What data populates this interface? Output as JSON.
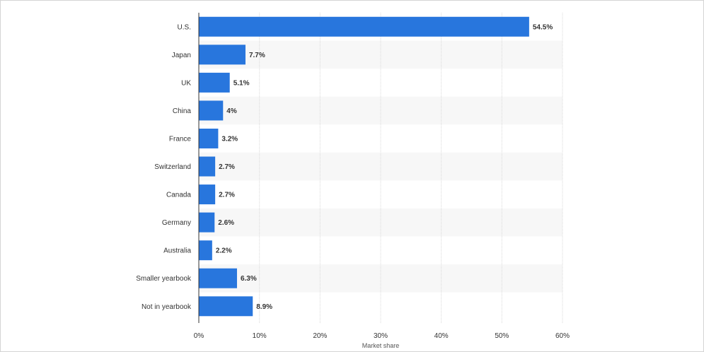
{
  "chart_data": {
    "type": "bar",
    "orientation": "horizontal",
    "categories": [
      "U.S.",
      "Japan",
      "UK",
      "China",
      "France",
      "Switzerland",
      "Canada",
      "Germany",
      "Australia",
      "Smaller yearbook",
      "Not in yearbook"
    ],
    "values": [
      54.5,
      7.7,
      5.1,
      4,
      3.2,
      2.7,
      2.7,
      2.6,
      2.2,
      6.3,
      8.9
    ],
    "value_labels": [
      "54.5%",
      "7.7%",
      "5.1%",
      "4%",
      "3.2%",
      "2.7%",
      "2.7%",
      "2.6%",
      "2.2%",
      "6.3%",
      "8.9%"
    ],
    "xlim": [
      0,
      60
    ],
    "xticks": [
      0,
      10,
      20,
      30,
      40,
      50,
      60
    ],
    "xtick_labels": [
      "0%",
      "10%",
      "20%",
      "30%",
      "40%",
      "50%",
      "60%"
    ],
    "xlabel": "Market share",
    "ylabel": "",
    "title": "",
    "grid": true,
    "bar_color": "#2876dd",
    "stripe_color": "#f7f7f7",
    "grid_color": "#d9d9d9"
  }
}
